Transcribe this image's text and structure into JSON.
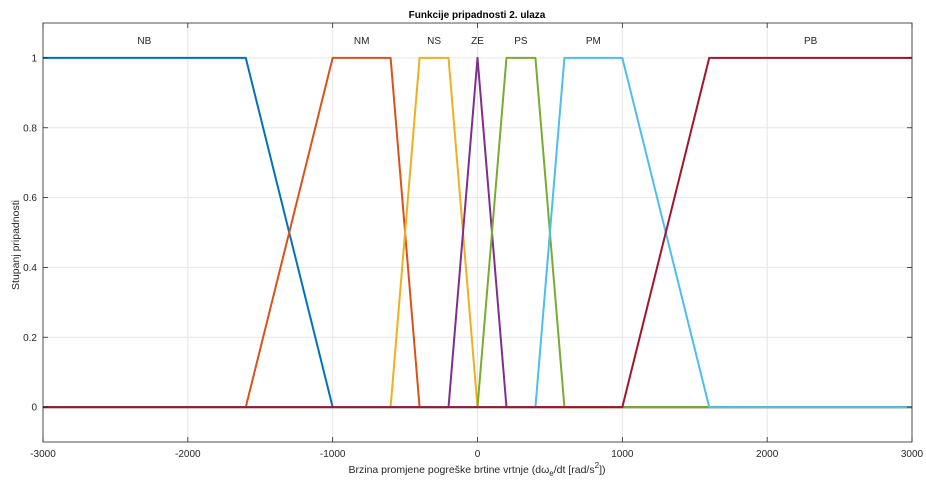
{
  "chart_data": {
    "type": "line",
    "title": "Funkcije pripadnosti 2. ulaza",
    "xlabel": "Brzina promjene pogreške brtine vrtnje (dω",
    "xlabel_sub": "e",
    "xlabel_mid": "/dt [rad/s",
    "xlabel_sup": "2",
    "xlabel_end": "])",
    "ylabel": "Stupanj pripadnosti",
    "xlim": [
      -3000,
      3000
    ],
    "ylim": [
      -0.1,
      1.1
    ],
    "xticks": [
      -3000,
      -2000,
      -1000,
      0,
      1000,
      2000,
      3000
    ],
    "xtick_labels": [
      "-3000",
      "-2000",
      "-1000",
      "0",
      "1000",
      "2000",
      "3000"
    ],
    "yticks": [
      0,
      0.2,
      0.4,
      0.6,
      0.8,
      1
    ],
    "ytick_labels": [
      "0",
      "0.2",
      "0.4",
      "0.6",
      "0.8",
      "1"
    ],
    "grid": true,
    "series": [
      {
        "name": "NB",
        "color": "#0072BD",
        "x": [
          -3000,
          -1600,
          -1000,
          3000
        ],
        "y": [
          1,
          1,
          0,
          0
        ]
      },
      {
        "name": "NM",
        "color": "#D95319",
        "x": [
          -3000,
          -1600,
          -1000,
          -600,
          -400,
          3000
        ],
        "y": [
          0,
          0,
          1,
          1,
          0,
          0
        ]
      },
      {
        "name": "NS",
        "color": "#EDB120",
        "x": [
          -3000,
          -600,
          -400,
          -200,
          0,
          3000
        ],
        "y": [
          0,
          0,
          1,
          1,
          0,
          0
        ]
      },
      {
        "name": "ZE",
        "color": "#7E2F8E",
        "x": [
          -3000,
          -200,
          0,
          200,
          3000
        ],
        "y": [
          0,
          0,
          1,
          0,
          0
        ]
      },
      {
        "name": "PS",
        "color": "#77AC30",
        "x": [
          -3000,
          0,
          200,
          400,
          600,
          3000
        ],
        "y": [
          0,
          0,
          1,
          1,
          0,
          0
        ]
      },
      {
        "name": "PM",
        "color": "#4DBEEE",
        "x": [
          -3000,
          400,
          600,
          1000,
          1600,
          3000
        ],
        "y": [
          0,
          0,
          1,
          1,
          0,
          0
        ]
      },
      {
        "name": "PB",
        "color": "#A2142F",
        "x": [
          -3000,
          1000,
          1600,
          3000
        ],
        "y": [
          0,
          0,
          1,
          1
        ]
      }
    ],
    "mf_labels": [
      {
        "text": "NB",
        "x": -2300
      },
      {
        "text": "NM",
        "x": -800
      },
      {
        "text": "NS",
        "x": -300
      },
      {
        "text": "ZE",
        "x": 0
      },
      {
        "text": "PS",
        "x": 300
      },
      {
        "text": "PM",
        "x": 800
      },
      {
        "text": "PB",
        "x": 2300
      }
    ],
    "mf_label_y": 1.05
  }
}
